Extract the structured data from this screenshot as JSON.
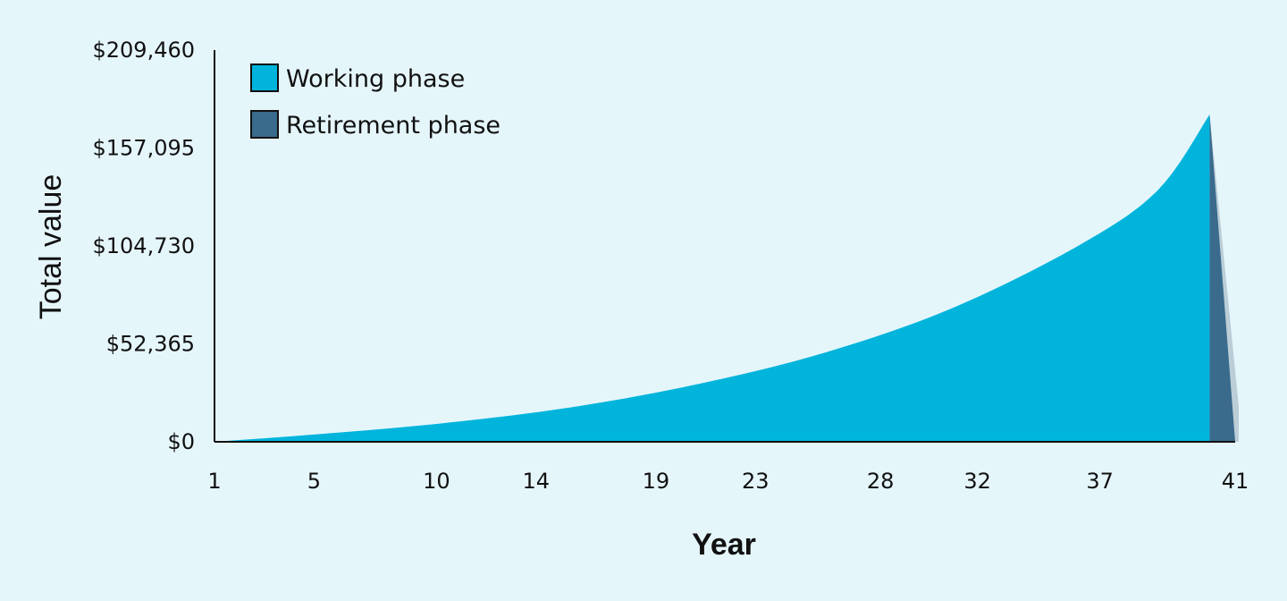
{
  "chart_data": {
    "type": "area",
    "title": "",
    "xlabel": "Year",
    "ylabel": "Total value",
    "ylim": [
      0,
      209460
    ],
    "xlim": [
      1,
      41
    ],
    "y_ticks": [
      "$0",
      "$52,365",
      "$104,730",
      "$157,095",
      "$209,460"
    ],
    "y_tick_values": [
      0,
      52365,
      104730,
      157095,
      209460
    ],
    "x_ticks": [
      "1",
      "5",
      "10",
      "14",
      "19",
      "23",
      "28",
      "32",
      "37",
      "41"
    ],
    "x_tick_values": [
      1,
      4.9,
      9.7,
      13.6,
      18.3,
      22.2,
      27.1,
      30.9,
      35.7,
      41
    ],
    "grid": false,
    "legend_position": "top-left",
    "series": [
      {
        "name": "Working phase",
        "color": "#00b4dc",
        "x": [
          1,
          5,
          10,
          15,
          20,
          25,
          30,
          35,
          38,
          40
        ],
        "values": [
          0,
          4000,
          10000,
          18500,
          31000,
          48000,
          72000,
          106000,
          135000,
          175000
        ]
      },
      {
        "name": "Retirement phase",
        "color": "#3a6a8c",
        "x": [
          40,
          41
        ],
        "values": [
          175000,
          0
        ]
      }
    ]
  }
}
